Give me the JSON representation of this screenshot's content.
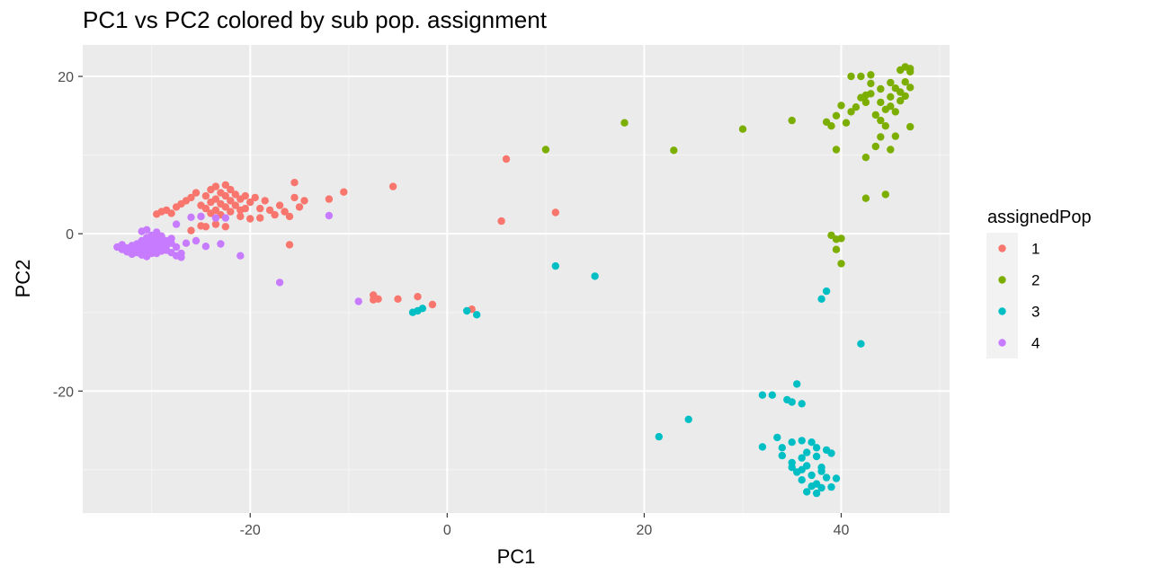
{
  "chart_data": {
    "type": "scatter",
    "title": "PC1 vs PC2 colored by sub pop. assignment",
    "xlabel": "PC1",
    "ylabel": "PC2",
    "xlim": [
      -37,
      51
    ],
    "ylim": [
      -35.5,
      24
    ],
    "x_ticks": [
      -20,
      0,
      20,
      40
    ],
    "y_ticks": [
      -20,
      0,
      20
    ],
    "grid": true,
    "legend": {
      "title": "assignedPop",
      "placement": "right"
    },
    "series": [
      {
        "name": "1",
        "color": "#F8766D",
        "points": [
          [
            -29.5,
            2.5
          ],
          [
            -29,
            2.8
          ],
          [
            -28.5,
            3.0
          ],
          [
            -28,
            2.6
          ],
          [
            -27.5,
            3.4
          ],
          [
            -27,
            3.8
          ],
          [
            -26.5,
            4.2
          ],
          [
            -26,
            4.6
          ],
          [
            -25.5,
            5.2
          ],
          [
            -25,
            3.6
          ],
          [
            -25,
            2.2
          ],
          [
            -24.5,
            4.8
          ],
          [
            -24.5,
            3.2
          ],
          [
            -24,
            5.6
          ],
          [
            -24,
            4.0
          ],
          [
            -24,
            2.6
          ],
          [
            -23.5,
            6.0
          ],
          [
            -23.5,
            4.4
          ],
          [
            -23.5,
            3.0
          ],
          [
            -23,
            5.2
          ],
          [
            -23,
            3.8
          ],
          [
            -23,
            2.4
          ],
          [
            -22.5,
            6.2
          ],
          [
            -22.5,
            4.8
          ],
          [
            -22.5,
            3.4
          ],
          [
            -22,
            5.6
          ],
          [
            -22,
            4.2
          ],
          [
            -22,
            2.8
          ],
          [
            -21.5,
            5.0
          ],
          [
            -21.5,
            3.6
          ],
          [
            -21,
            4.4
          ],
          [
            -21,
            3.0
          ],
          [
            -20.5,
            4.8
          ],
          [
            -20.5,
            3.2
          ],
          [
            -20,
            4.0
          ],
          [
            -19.5,
            4.6
          ],
          [
            -19,
            3.2
          ],
          [
            -18.5,
            4.2
          ],
          [
            -18,
            3.0
          ],
          [
            -17.5,
            2.4
          ],
          [
            -17,
            3.6
          ],
          [
            -16.5,
            2.8
          ],
          [
            -16,
            2.2
          ],
          [
            -15.5,
            4.6
          ],
          [
            -15,
            3.4
          ],
          [
            -15.5,
            6.5
          ],
          [
            -14.5,
            4.2
          ],
          [
            -12,
            4.4
          ],
          [
            -10.5,
            5.3
          ],
          [
            -5.5,
            6.0
          ],
          [
            -24.5,
            0.9
          ],
          [
            -23.5,
            1.2
          ],
          [
            -22.5,
            0.9
          ],
          [
            -25,
            1.0
          ],
          [
            -26,
            0.4
          ],
          [
            -20,
            1.9
          ],
          [
            -16,
            -1.4
          ],
          [
            -7.5,
            -7.8
          ],
          [
            -7,
            -8.3
          ],
          [
            -7.5,
            -8.4
          ],
          [
            -5,
            -8.3
          ],
          [
            -3,
            -8.0
          ],
          [
            -1.5,
            -9.0
          ],
          [
            2.5,
            -9.6
          ],
          [
            6,
            9.5
          ],
          [
            5.5,
            1.6
          ],
          [
            11,
            2.7
          ],
          [
            -21,
            2.2
          ],
          [
            -19,
            2.0
          ]
        ]
      },
      {
        "name": "2",
        "color": "#7CAE00",
        "points": [
          [
            10,
            10.7
          ],
          [
            18,
            14.1
          ],
          [
            23,
            10.6
          ],
          [
            30,
            13.3
          ],
          [
            35,
            14.4
          ],
          [
            38.5,
            14.2
          ],
          [
            39,
            13.7
          ],
          [
            39.5,
            15.0
          ],
          [
            39.5,
            10.7
          ],
          [
            40,
            16.3
          ],
          [
            40.5,
            14.1
          ],
          [
            41,
            15.5
          ],
          [
            41.5,
            16.1
          ],
          [
            42,
            20.0
          ],
          [
            42,
            17.3
          ],
          [
            42.5,
            16.7
          ],
          [
            42.5,
            9.7
          ],
          [
            43,
            19.1
          ],
          [
            43,
            17.8
          ],
          [
            43.5,
            15.1
          ],
          [
            43.5,
            11.1
          ],
          [
            44,
            18.4
          ],
          [
            44,
            16.7
          ],
          [
            44.5,
            15.8
          ],
          [
            44.5,
            13.7
          ],
          [
            45,
            19.2
          ],
          [
            45,
            17.4
          ],
          [
            45,
            16.2
          ],
          [
            45.5,
            18.5
          ],
          [
            45.5,
            15.5
          ],
          [
            45.5,
            12.4
          ],
          [
            46,
            20.8
          ],
          [
            46,
            18.0
          ],
          [
            46,
            16.9
          ],
          [
            46.5,
            21.2
          ],
          [
            46.5,
            19.3
          ],
          [
            46.5,
            17.5
          ],
          [
            47,
            20.6
          ],
          [
            47,
            18.6
          ],
          [
            47,
            13.6
          ],
          [
            44,
            14.4
          ],
          [
            42.5,
            17.6
          ],
          [
            45,
            10.7
          ],
          [
            44,
            12.3
          ],
          [
            42.5,
            4.5
          ],
          [
            44.5,
            5.0
          ],
          [
            39,
            -0.2
          ],
          [
            39.5,
            -0.7
          ],
          [
            40,
            -0.6
          ],
          [
            39.5,
            -2.0
          ],
          [
            40,
            -3.8
          ],
          [
            41,
            20.0
          ],
          [
            43,
            20.2
          ],
          [
            47,
            21.0
          ]
        ]
      },
      {
        "name": "3",
        "color": "#00BFC4",
        "points": [
          [
            -3.5,
            -10.0
          ],
          [
            -3,
            -9.8
          ],
          [
            -2.5,
            -9.5
          ],
          [
            2,
            -9.8
          ],
          [
            3,
            -10.3
          ],
          [
            11,
            -4.1
          ],
          [
            15,
            -5.4
          ],
          [
            38.5,
            -7.3
          ],
          [
            38,
            -8.3
          ],
          [
            42,
            -14.0
          ],
          [
            21.5,
            -25.8
          ],
          [
            24.5,
            -23.6
          ],
          [
            32,
            -20.5
          ],
          [
            33,
            -20.5
          ],
          [
            34.5,
            -21.1
          ],
          [
            35,
            -21.4
          ],
          [
            35.5,
            -19.1
          ],
          [
            36,
            -21.6
          ],
          [
            33.5,
            -25.9
          ],
          [
            34,
            -27.2
          ],
          [
            35,
            -26.5
          ],
          [
            36,
            -26.3
          ],
          [
            37,
            -26.5
          ],
          [
            32,
            -27.1
          ],
          [
            34,
            -28.2
          ],
          [
            36,
            -28.5
          ],
          [
            37.5,
            -28.3
          ],
          [
            38.5,
            -27.5
          ],
          [
            39,
            -27.9
          ],
          [
            35,
            -29.1
          ],
          [
            36.5,
            -29.5
          ],
          [
            38,
            -29.7
          ],
          [
            35.5,
            -30.3
          ],
          [
            37,
            -30.7
          ],
          [
            38.5,
            -31.0
          ],
          [
            36,
            -31.3
          ],
          [
            37.5,
            -31.8
          ],
          [
            39,
            -32.2
          ],
          [
            36.5,
            -32.8
          ],
          [
            37.5,
            -33.0
          ],
          [
            35,
            -29.7
          ],
          [
            36,
            -30.0
          ],
          [
            38,
            -30.2
          ],
          [
            39.5,
            -31.1
          ],
          [
            37,
            -32.1
          ],
          [
            38,
            -32.3
          ],
          [
            36.5,
            -27.8
          ],
          [
            37.5,
            -27.2
          ]
        ]
      },
      {
        "name": "4",
        "color": "#C77CFF",
        "points": [
          [
            -33.5,
            -1.7
          ],
          [
            -33,
            -2.0
          ],
          [
            -33,
            -1.4
          ],
          [
            -32.5,
            -1.8
          ],
          [
            -32.5,
            -2.3
          ],
          [
            -32,
            -1.5
          ],
          [
            -32,
            -2.0
          ],
          [
            -32,
            -2.6
          ],
          [
            -31.5,
            -1.3
          ],
          [
            -31.5,
            -1.9
          ],
          [
            -31.5,
            -2.4
          ],
          [
            -31,
            -0.9
          ],
          [
            -31,
            -1.6
          ],
          [
            -31,
            -2.2
          ],
          [
            -31,
            -2.7
          ],
          [
            -30.5,
            -0.5
          ],
          [
            -30.5,
            -1.2
          ],
          [
            -30.5,
            -1.8
          ],
          [
            -30.5,
            -2.4
          ],
          [
            -30.5,
            -2.9
          ],
          [
            -30,
            -0.2
          ],
          [
            -30,
            -0.8
          ],
          [
            -30,
            -1.4
          ],
          [
            -30,
            -2.0
          ],
          [
            -30,
            -2.5
          ],
          [
            -29.5,
            -0.6
          ],
          [
            -29.5,
            -1.2
          ],
          [
            -29.5,
            -1.9
          ],
          [
            -29.5,
            -2.5
          ],
          [
            -29,
            -0.3
          ],
          [
            -29,
            -1.0
          ],
          [
            -29,
            -1.6
          ],
          [
            -29,
            -2.2
          ],
          [
            -28.5,
            -0.9
          ],
          [
            -28.5,
            -1.5
          ],
          [
            -28.5,
            -2.1
          ],
          [
            -28,
            -1.2
          ],
          [
            -28,
            -2.4
          ],
          [
            -27.5,
            -1.7
          ],
          [
            -27.5,
            -2.8
          ],
          [
            -27,
            -2.5
          ],
          [
            -27,
            -3.0
          ],
          [
            -26.5,
            -1.2
          ],
          [
            -25.5,
            -0.9
          ],
          [
            -24.5,
            -1.6
          ],
          [
            -23,
            -1.3
          ],
          [
            -21,
            -2.8
          ],
          [
            -17,
            -6.2
          ],
          [
            -12,
            2.3
          ],
          [
            -9,
            -8.6
          ],
          [
            -26,
            2.1
          ],
          [
            -25,
            2.2
          ],
          [
            -23.5,
            2.0
          ],
          [
            -22.5,
            2.0
          ],
          [
            -27.5,
            1.2
          ],
          [
            -30.5,
            0.5
          ],
          [
            -31,
            0.3
          ],
          [
            -28,
            -0.6
          ],
          [
            -29.5,
            0.2
          ]
        ]
      }
    ]
  }
}
